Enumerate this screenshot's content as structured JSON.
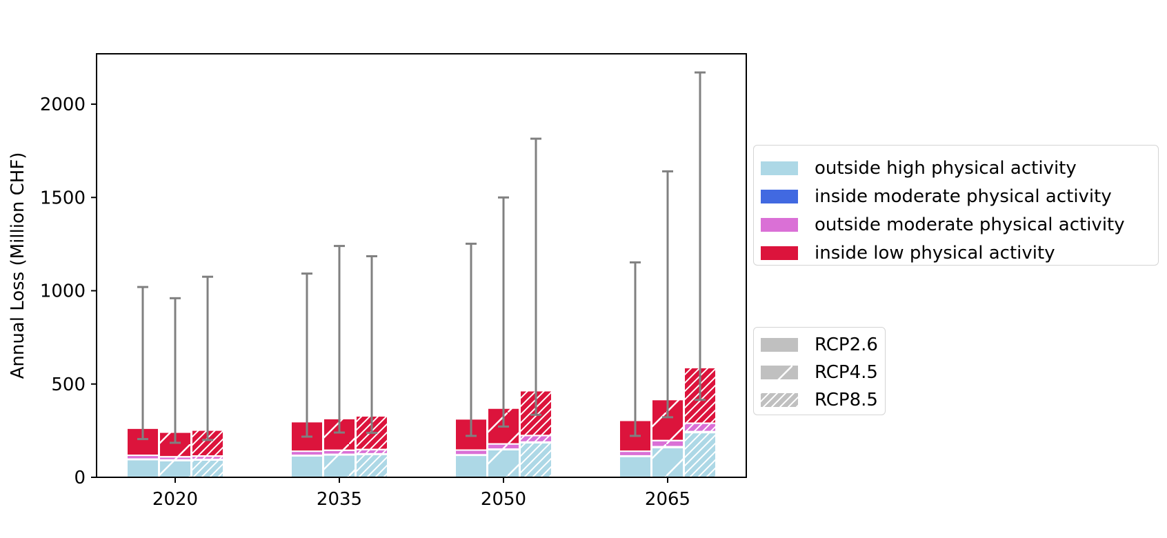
{
  "chart_data": {
    "type": "bar",
    "ylabel": "Annual Loss (Million CHF)",
    "xlabel": "",
    "ylim": [
      0,
      2270
    ],
    "yticks": [
      0,
      500,
      1000,
      1500,
      2000
    ],
    "categories": [
      "2020",
      "2035",
      "2050",
      "2065"
    ],
    "scenarios": [
      {
        "name": "RCP2.6",
        "hatch": "none"
      },
      {
        "name": "RCP4.5",
        "hatch": "sparse"
      },
      {
        "name": "RCP8.5",
        "hatch": "dense"
      }
    ],
    "stack_series": [
      {
        "name": "outside high physical activity",
        "color": "#add8e6"
      },
      {
        "name": "inside moderate physical activity",
        "color": "#4169e1"
      },
      {
        "name": "outside moderate physical activity",
        "color": "#da70d6"
      },
      {
        "name": "inside low physical activity",
        "color": "#dc143c"
      }
    ],
    "bars": [
      {
        "category": "2020",
        "scenario": "RCP2.6",
        "values": [
          95,
          3,
          20,
          145
        ],
        "error": [
          205,
          1020
        ]
      },
      {
        "category": "2020",
        "scenario": "RCP4.5",
        "values": [
          90,
          3,
          17,
          132
        ],
        "error": [
          185,
          960
        ]
      },
      {
        "category": "2020",
        "scenario": "RCP8.5",
        "values": [
          93,
          3,
          18,
          139
        ],
        "error": [
          200,
          1075
        ]
      },
      {
        "category": "2035",
        "scenario": "RCP2.6",
        "values": [
          115,
          3,
          22,
          158
        ],
        "error": [
          218,
          1092
        ]
      },
      {
        "category": "2035",
        "scenario": "RCP4.5",
        "values": [
          120,
          3,
          22,
          170
        ],
        "error": [
          240,
          1240
        ]
      },
      {
        "category": "2035",
        "scenario": "RCP8.5",
        "values": [
          123,
          3,
          23,
          180
        ],
        "error": [
          238,
          1185
        ]
      },
      {
        "category": "2050",
        "scenario": "RCP2.6",
        "values": [
          118,
          3,
          25,
          167
        ],
        "error": [
          222,
          1252
        ]
      },
      {
        "category": "2050",
        "scenario": "RCP4.5",
        "values": [
          148,
          3,
          28,
          192
        ],
        "error": [
          272,
          1500
        ]
      },
      {
        "category": "2050",
        "scenario": "RCP8.5",
        "values": [
          185,
          4,
          35,
          240
        ],
        "error": [
          335,
          1815
        ]
      },
      {
        "category": "2065",
        "scenario": "RCP2.6",
        "values": [
          112,
          3,
          25,
          165
        ],
        "error": [
          222,
          1152
        ]
      },
      {
        "category": "2065",
        "scenario": "RCP4.5",
        "values": [
          160,
          4,
          33,
          220
        ],
        "error": [
          322,
          1640
        ]
      },
      {
        "category": "2065",
        "scenario": "RCP8.5",
        "values": [
          240,
          5,
          45,
          298
        ],
        "error": [
          415,
          2170
        ]
      }
    ],
    "legend_placement": "right",
    "grid": false
  }
}
